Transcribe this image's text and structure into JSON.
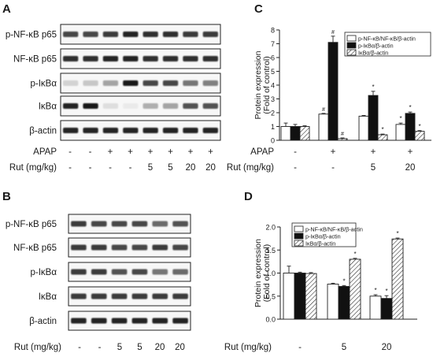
{
  "panels": {
    "A": {
      "letter": "A",
      "bands": [
        "p-NF-κB p65",
        "NF-κB p65",
        "p-IκBα",
        "IκBα",
        "β-actin"
      ],
      "treatments": [
        {
          "label": "APAP",
          "values": [
            "-",
            "-",
            "+",
            "+",
            "+",
            "+",
            "+",
            "+"
          ]
        },
        {
          "label": "Rut (mg/kg)",
          "values": [
            "-",
            "-",
            "-",
            "-",
            "5",
            "5",
            "20",
            "20"
          ]
        }
      ]
    },
    "B": {
      "letter": "B",
      "bands": [
        "p-NF-κB p65",
        "NF-κB p65",
        "p-IκBα",
        "IκBα",
        "β-actin"
      ],
      "treatments": [
        {
          "label": "Rut (mg/kg)",
          "values": [
            "-",
            "-",
            "5",
            "5",
            "20",
            "20"
          ]
        }
      ]
    }
  },
  "chart_data": [
    {
      "panel": "C",
      "type": "bar",
      "ylabel": "Protein expression\n(Fold of control)",
      "ylim": [
        0,
        8
      ],
      "yticks": [
        "0",
        "1",
        "2",
        "3",
        "4",
        "5",
        "6",
        "7",
        "8"
      ],
      "legend_position": "top-right",
      "groups": [
        {
          "APAP": "-",
          "Rut (mg/kg)": "-"
        },
        {
          "APAP": "+",
          "Rut (mg/kg)": "-"
        },
        {
          "APAP": "+",
          "Rut (mg/kg)": "5"
        },
        {
          "APAP": "+",
          "Rut (mg/kg)": "20"
        }
      ],
      "treatment_labels": [
        "APAP",
        "Rut (mg/kg)"
      ],
      "series": [
        {
          "name": "p-NF-κB/NF-κB/β-actin",
          "values": [
            1.0,
            1.9,
            1.75,
            1.15
          ],
          "errors": [
            0.25,
            0.05,
            0.05,
            0.1
          ],
          "marks": [
            "",
            "#",
            "",
            "*"
          ],
          "fill": "white"
        },
        {
          "name": "p-IκBα/β-actin",
          "values": [
            1.0,
            7.1,
            3.25,
            1.95
          ],
          "errors": [
            0.15,
            0.45,
            0.3,
            0.1
          ],
          "marks": [
            "",
            "#",
            "*",
            "*"
          ],
          "fill": "black"
        },
        {
          "name": "IκBα/β-actin",
          "values": [
            1.0,
            0.12,
            0.4,
            0.65
          ],
          "errors": [
            0.05,
            0.05,
            0.05,
            0.05
          ],
          "marks": [
            "",
            "#",
            "*",
            "*"
          ],
          "fill": "hatch"
        }
      ]
    },
    {
      "panel": "D",
      "type": "bar",
      "ylabel": "Protein expression\n(Fold of control)",
      "ylim": [
        0,
        2.0
      ],
      "yticks": [
        "0.0",
        "0.5",
        "1.0",
        "1.5",
        "2.0"
      ],
      "legend_position": "top-left",
      "groups": [
        {
          "Rut (mg/kg)": "-"
        },
        {
          "Rut (mg/kg)": "5"
        },
        {
          "Rut (mg/kg)": "20"
        }
      ],
      "treatment_labels": [
        "Rut (mg/kg)"
      ],
      "series": [
        {
          "name": "p-NF-κB/NF-κB/β-actin",
          "values": [
            1.0,
            0.76,
            0.5
          ],
          "errors": [
            0.15,
            0.02,
            0.03
          ],
          "marks": [
            "",
            "",
            "*"
          ],
          "fill": "white"
        },
        {
          "name": "p-IκBα/β-actin",
          "values": [
            1.0,
            0.71,
            0.45
          ],
          "errors": [
            0.02,
            0.02,
            0.06
          ],
          "marks": [
            "",
            "*",
            "*"
          ],
          "fill": "black"
        },
        {
          "name": "IκBα/β-actin",
          "values": [
            0.99,
            1.3,
            1.74
          ],
          "errors": [
            0.02,
            0.02,
            0.02
          ],
          "marks": [
            "",
            "*",
            "*"
          ],
          "fill": "hatch"
        }
      ]
    }
  ]
}
